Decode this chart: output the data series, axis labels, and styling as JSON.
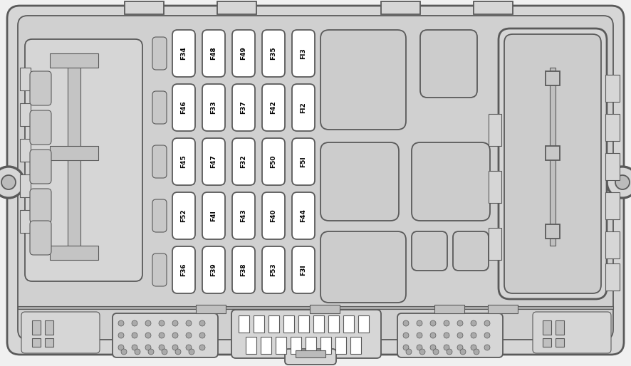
{
  "bg_color": "#d6d6d6",
  "outline_color": "#5a5a5a",
  "white": "#ffffff",
  "lw_thick": 2.0,
  "lw_med": 1.3,
  "lw_thin": 0.8,
  "fuse_rows": [
    [
      "F34",
      "F48",
      "F49",
      "F35",
      "FI3"
    ],
    [
      "F46",
      "F33",
      "F37",
      "F42",
      "FI2"
    ],
    [
      "F45",
      "F47",
      "F32",
      "F50",
      "F5I"
    ],
    [
      "F52",
      "F4I",
      "F43",
      "F40",
      "F44"
    ],
    [
      "F36",
      "F39",
      "F38",
      "F53",
      "F3I"
    ]
  ]
}
